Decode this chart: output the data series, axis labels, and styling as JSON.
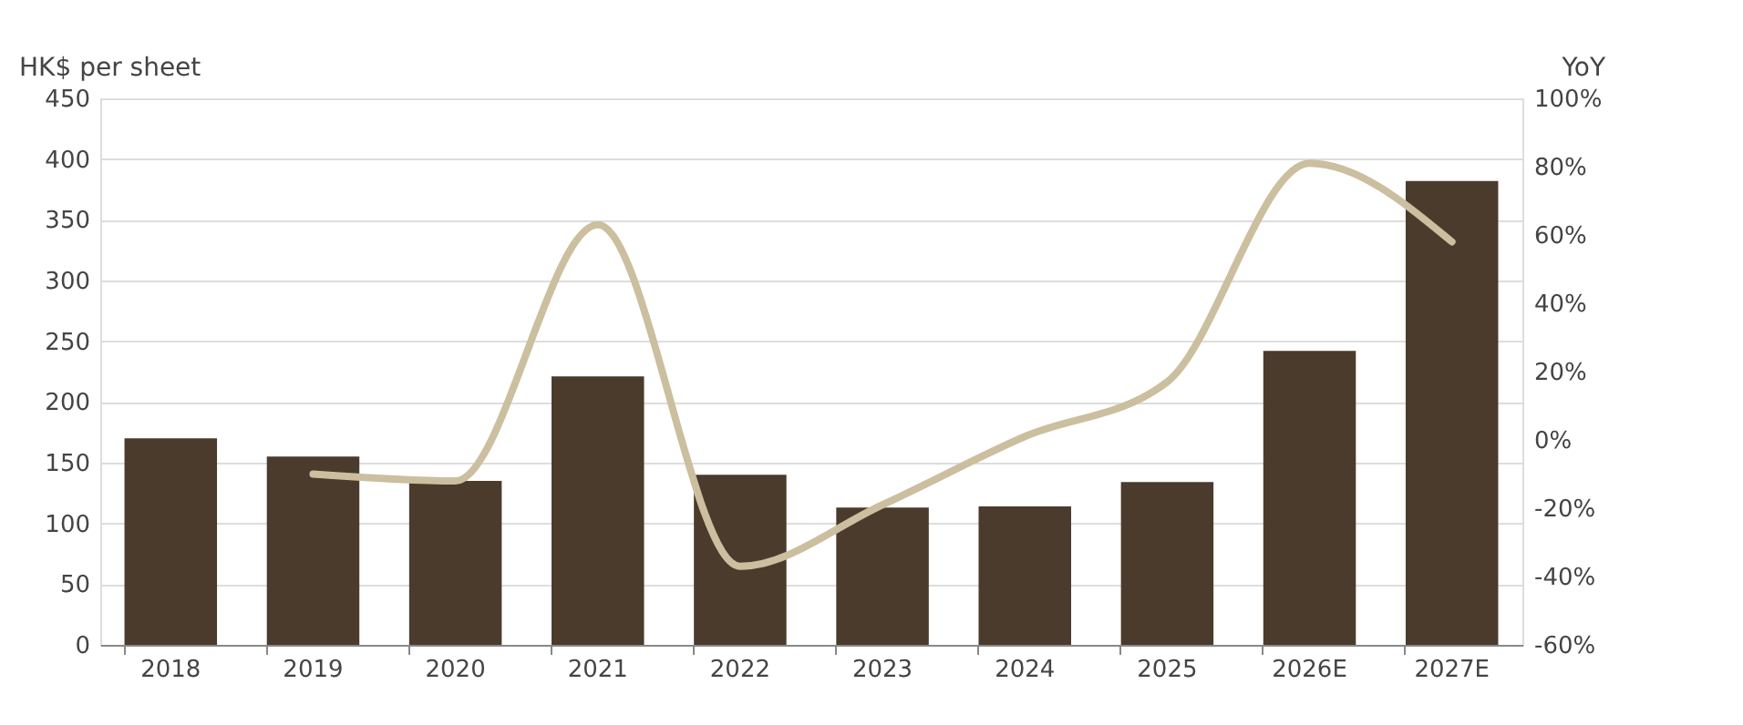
{
  "chart_data": {
    "type": "bar",
    "ylabel": "HK$ per sheet",
    "y2label": "YoY",
    "categories": [
      "2018",
      "2019",
      "2020",
      "2021",
      "2022",
      "2023",
      "2024",
      "2025",
      "2026E",
      "2027E"
    ],
    "series": [
      {
        "color": "#4a3b2c",
        "values": [
          170,
          155,
          135,
          221,
          140,
          113,
          114,
          134,
          242,
          382
        ]
      },
      {
        "type": "line",
        "axis": "y2",
        "color": "#cbbf9f",
        "values": [
          null,
          -10,
          -12,
          63,
          -37,
          -19,
          1,
          17,
          81,
          58
        ]
      }
    ],
    "ylim": [
      0,
      450
    ],
    "yticks": [
      0,
      50,
      100,
      150,
      200,
      250,
      300,
      350,
      400,
      450
    ],
    "y2lim": [
      -60,
      100
    ],
    "y2ticks": [
      {
        "value": -60,
        "label": "-60%"
      },
      {
        "value": -40,
        "label": "-40%"
      },
      {
        "value": -20,
        "label": "-20%"
      },
      {
        "value": 0,
        "label": "0%"
      },
      {
        "value": 20,
        "label": "20%"
      },
      {
        "value": 40,
        "label": "40%"
      },
      {
        "value": 60,
        "label": "60%"
      },
      {
        "value": 80,
        "label": "80%"
      },
      {
        "value": 100,
        "label": "100%"
      }
    ],
    "grid": "y"
  }
}
